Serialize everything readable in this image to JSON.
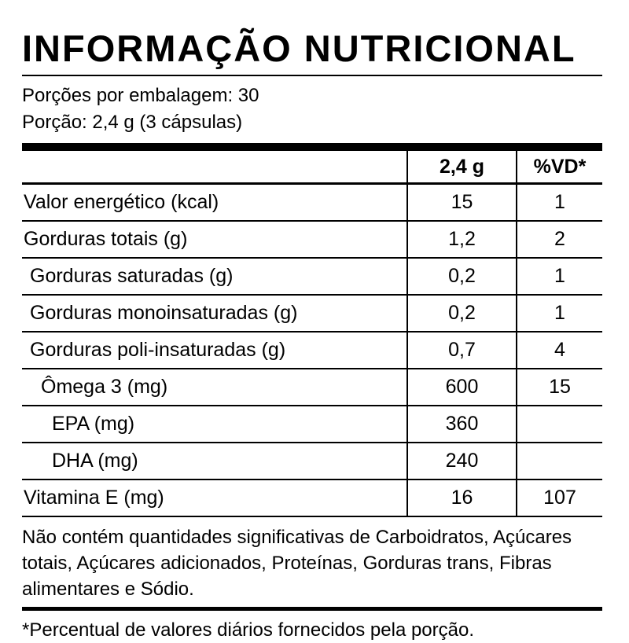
{
  "colors": {
    "text": "#000000",
    "background": "#ffffff"
  },
  "title": "INFORMAÇÃO NUTRICIONAL",
  "serving_info": {
    "servings_per_package": "Porções por embalagem: 30",
    "serving_size": "Porção: 2,4 g (3 cápsulas)"
  },
  "table": {
    "header": {
      "label": "",
      "amount": "2,4 g",
      "dv": "%VD*"
    },
    "rows": [
      {
        "label": "Valor energético (kcal)",
        "amount": "15",
        "dv": "1",
        "indent": 0
      },
      {
        "label": "Gorduras totais (g)",
        "amount": "1,2",
        "dv": "2",
        "indent": 0
      },
      {
        "label": "Gorduras saturadas (g)",
        "amount": "0,2",
        "dv": "1",
        "indent": 1
      },
      {
        "label": "Gorduras monoinsaturadas (g)",
        "amount": "0,2",
        "dv": "1",
        "indent": 1
      },
      {
        "label": "Gorduras poli-insaturadas (g)",
        "amount": "0,7",
        "dv": "4",
        "indent": 1
      },
      {
        "label": "Ômega 3 (mg)",
        "amount": "600",
        "dv": "15",
        "indent": 2
      },
      {
        "label": "EPA (mg)",
        "amount": "360",
        "dv": "",
        "indent": 3
      },
      {
        "label": "DHA (mg)",
        "amount": "240",
        "dv": "",
        "indent": 3
      },
      {
        "label": "Vitamina E (mg)",
        "amount": "16",
        "dv": "107",
        "indent": 0
      }
    ]
  },
  "footnotes": {
    "no_significant": "Não contém quantidades significativas de Carboidratos, Açúcares totais, Açúcares adicionados, Proteínas, Gorduras trans, Fibras alimentares e Sódio.",
    "daily_values": "*Percentual de valores diários fornecidos pela porção."
  }
}
